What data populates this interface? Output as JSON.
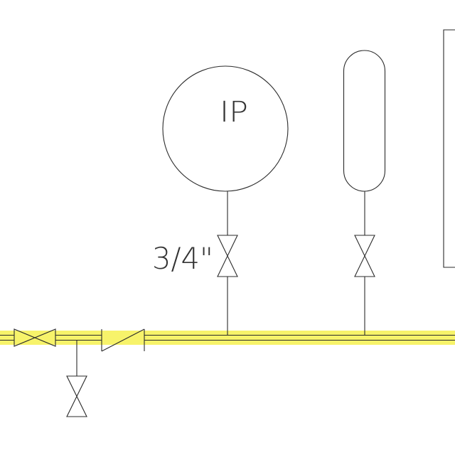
{
  "diagram": {
    "gauge_label": "IP",
    "pipe_size_label": "3/4\""
  },
  "colors": {
    "highlight": "#f7f36a",
    "line": "#2b2b2b",
    "background": "#ffffff"
  },
  "icons": [
    "gate-valve-icon",
    "check-valve-icon",
    "pressure-gauge-icon",
    "vessel-icon"
  ]
}
